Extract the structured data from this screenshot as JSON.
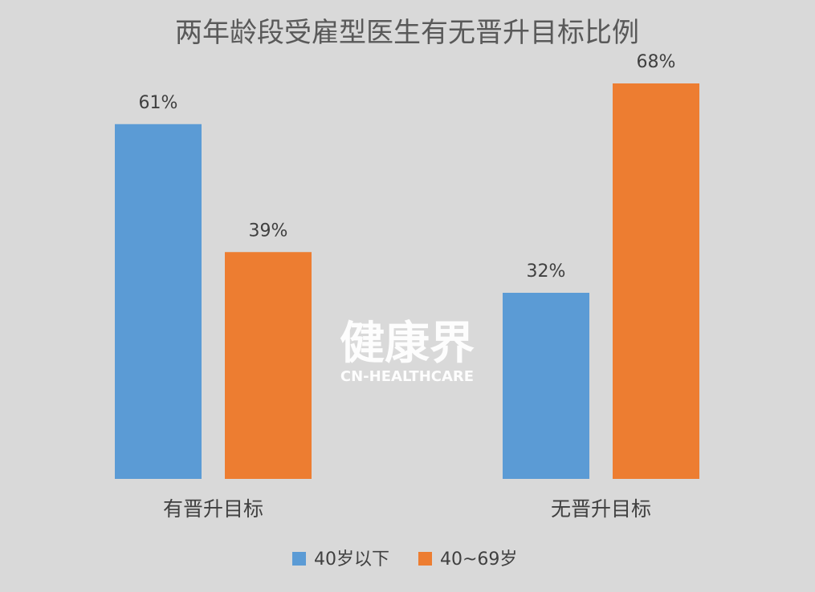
{
  "chart_data": {
    "type": "bar",
    "title": "两年龄段受雇型医生有无晋升目标比例",
    "categories": [
      "有晋升目标",
      "无晋升目标"
    ],
    "series": [
      {
        "name": "40岁以下",
        "values": [
          61,
          32
        ],
        "labels": [
          "61%",
          "32%"
        ],
        "color": "#5b9bd5"
      },
      {
        "name": "40~69岁",
        "values": [
          39,
          68
        ],
        "labels": [
          "39%",
          "68%"
        ],
        "color": "#ed7d31"
      }
    ],
    "ylim": [
      0,
      72
    ],
    "grid": false,
    "legend_position": "bottom"
  },
  "watermark": {
    "main_text": "健康界",
    "sub_text": "CN-HEALTHCARE"
  }
}
